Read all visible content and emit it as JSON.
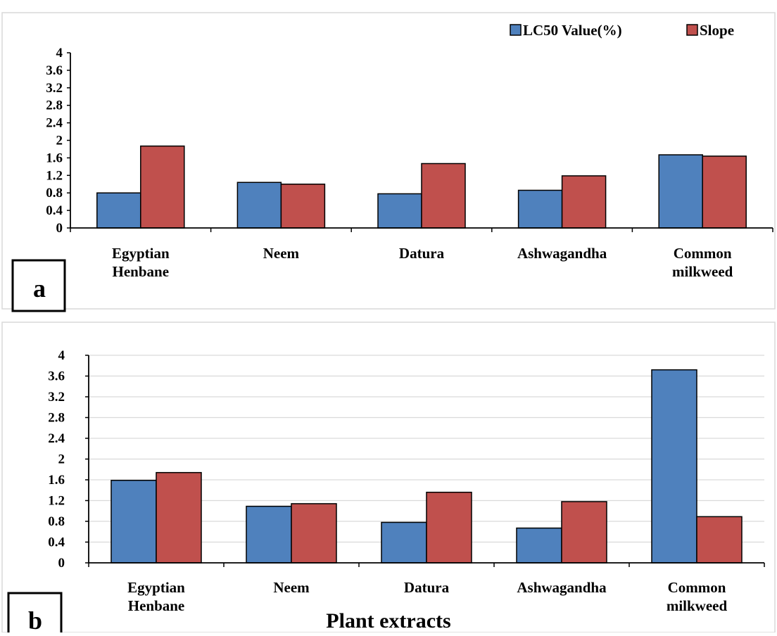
{
  "chart_data": [
    {
      "type": "bar",
      "panel_label": "a",
      "categories": [
        "Egyptian Henbane",
        "Neem",
        "Datura",
        "Ashwagandha",
        "Common milkweed"
      ],
      "series": [
        {
          "name": "LC50 Value(%)",
          "color": "#4f81bd",
          "values": [
            0.8,
            1.04,
            0.78,
            0.86,
            1.67
          ]
        },
        {
          "name": "Slope",
          "color": "#c0504d",
          "values": [
            1.87,
            1.0,
            1.47,
            1.19,
            1.64
          ]
        }
      ],
      "ylim": [
        0,
        4
      ],
      "yticks": [
        "0",
        "0.4",
        "0.8",
        "1.2",
        "1.6",
        "2",
        "2.4",
        "2.8",
        "3.2",
        "3.6",
        "4"
      ],
      "xlabel": "",
      "grid": false,
      "legend": "top-right"
    },
    {
      "type": "bar",
      "panel_label": "b",
      "categories": [
        "Egyptian Henbane",
        "Neem",
        "Datura",
        "Ashwagandha",
        "Common milkweed"
      ],
      "series": [
        {
          "name": "LC50 Value(%)",
          "color": "#4f81bd",
          "values": [
            1.59,
            1.09,
            0.78,
            0.67,
            3.72
          ]
        },
        {
          "name": "Slope",
          "color": "#c0504d",
          "values": [
            1.74,
            1.14,
            1.36,
            1.18,
            0.89
          ]
        }
      ],
      "ylim": [
        0,
        4
      ],
      "yticks": [
        "0",
        "0.4",
        "0.8",
        "1.2",
        "1.6",
        "2",
        "2.4",
        "2.8",
        "3.2",
        "3.6",
        "4"
      ],
      "xlabel": "Plant extracts",
      "grid": true,
      "legend": "none"
    }
  ]
}
